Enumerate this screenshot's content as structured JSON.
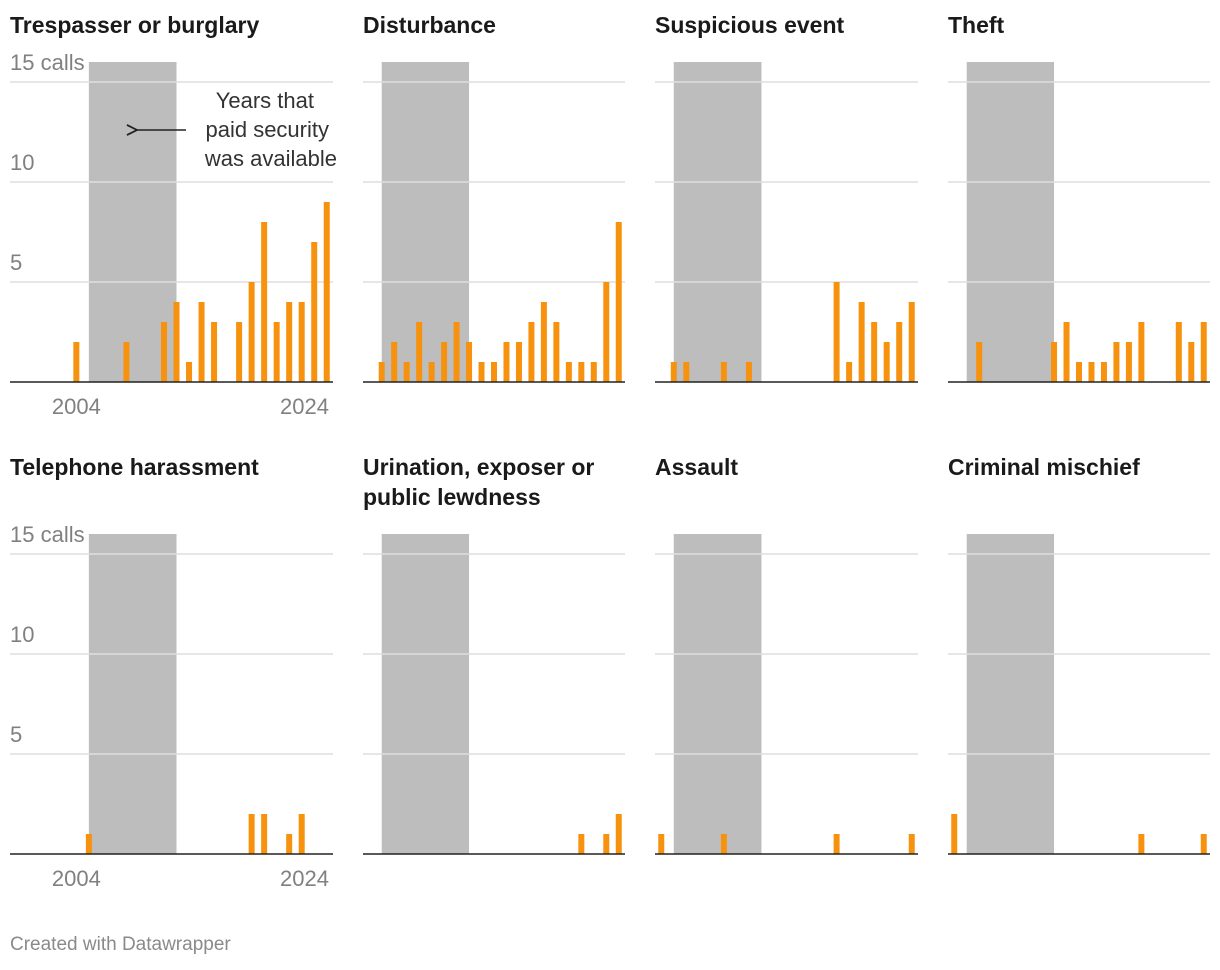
{
  "chart_data": [
    {
      "type": "bar",
      "title": "Trespasser or burglary",
      "color": "#f7920f",
      "x": [
        2004,
        2008,
        2011,
        2012,
        2013,
        2014,
        2015,
        2017,
        2018,
        2019,
        2020,
        2021,
        2022,
        2023,
        2024
      ],
      "values": [
        2,
        2,
        3,
        4,
        1,
        4,
        3,
        3,
        5,
        8,
        3,
        4,
        4,
        7,
        9
      ],
      "xlim": [
        1998.7,
        2024.5
      ],
      "xticks": [
        2004,
        2024
      ],
      "ylim": [
        0,
        16
      ],
      "yticks": [
        5,
        10,
        {
          "value": 15,
          "label": "15 calls"
        }
      ],
      "grid": true,
      "highlight_range": [
        2005,
        2012
      ],
      "highlight_color": "#bdbdbd",
      "annotation": [
        "Years that",
        "paid security",
        "was available"
      ]
    },
    {
      "type": "bar",
      "title": "Disturbance",
      "color": "#f7920f",
      "x": [
        2005,
        2006,
        2007,
        2008,
        2009,
        2010,
        2011,
        2012,
        2013,
        2014,
        2015,
        2016,
        2017,
        2018,
        2019,
        2020,
        2021,
        2022,
        2023,
        2024
      ],
      "values": [
        1,
        2,
        1,
        3,
        1,
        2,
        3,
        2,
        1,
        1,
        2,
        2,
        3,
        4,
        3,
        1,
        1,
        1,
        5,
        8
      ],
      "xlim": [
        2003.5,
        2024.5
      ],
      "ylim": [
        0,
        16
      ],
      "yticks": [
        5,
        10,
        15
      ],
      "tick_labels": false,
      "grid": true,
      "highlight_range": [
        2005,
        2012
      ],
      "highlight_color": "#bdbdbd"
    },
    {
      "type": "bar",
      "title": "Suspicious event",
      "color": "#f7920f",
      "x": [
        2005,
        2006,
        2009,
        2011,
        2018,
        2019,
        2020,
        2021,
        2022,
        2023,
        2024
      ],
      "values": [
        1,
        1,
        1,
        1,
        5,
        1,
        4,
        3,
        2,
        3,
        4
      ],
      "xlim": [
        2003.5,
        2024.5
      ],
      "ylim": [
        0,
        16
      ],
      "yticks": [
        5,
        10,
        15
      ],
      "tick_labels": false,
      "grid": true,
      "highlight_range": [
        2005,
        2012
      ],
      "highlight_color": "#bdbdbd"
    },
    {
      "type": "bar",
      "title": "Theft",
      "color": "#f7920f",
      "x": [
        2006,
        2012,
        2013,
        2014,
        2015,
        2016,
        2017,
        2018,
        2019,
        2022,
        2023,
        2024
      ],
      "values": [
        2,
        2,
        3,
        1,
        1,
        1,
        2,
        2,
        3,
        3,
        2,
        3
      ],
      "xlim": [
        2003.5,
        2024.5
      ],
      "ylim": [
        0,
        16
      ],
      "yticks": [
        5,
        10,
        15
      ],
      "tick_labels": false,
      "grid": true,
      "highlight_range": [
        2005,
        2012
      ],
      "highlight_color": "#bdbdbd"
    },
    {
      "type": "bar",
      "title": "Telephone harassment",
      "color": "#f7920f",
      "x": [
        2005,
        2018,
        2019,
        2021,
        2022
      ],
      "values": [
        1,
        2,
        2,
        1,
        2
      ],
      "xlim": [
        1998.7,
        2024.5
      ],
      "xticks": [
        2004,
        2024
      ],
      "ylim": [
        0,
        16
      ],
      "yticks": [
        5,
        10,
        {
          "value": 15,
          "label": "15 calls"
        }
      ],
      "grid": true,
      "highlight_range": [
        2005,
        2012
      ],
      "highlight_color": "#bdbdbd"
    },
    {
      "type": "bar",
      "title": "Urination, exposer or public lewdness",
      "color": "#f7920f",
      "x": [
        2021,
        2023,
        2024
      ],
      "values": [
        1,
        1,
        2
      ],
      "xlim": [
        2003.5,
        2024.5
      ],
      "ylim": [
        0,
        16
      ],
      "yticks": [
        5,
        10,
        15
      ],
      "tick_labels": false,
      "grid": true,
      "highlight_range": [
        2005,
        2012
      ],
      "highlight_color": "#bdbdbd"
    },
    {
      "type": "bar",
      "title": "Assault",
      "color": "#f7920f",
      "x": [
        2004,
        2009,
        2018,
        2024
      ],
      "values": [
        1,
        1,
        1,
        1
      ],
      "xlim": [
        2003.5,
        2024.5
      ],
      "ylim": [
        0,
        16
      ],
      "yticks": [
        5,
        10,
        15
      ],
      "tick_labels": false,
      "grid": true,
      "highlight_range": [
        2005,
        2012
      ],
      "highlight_color": "#bdbdbd"
    },
    {
      "type": "bar",
      "title": "Criminal mischief",
      "color": "#f7920f",
      "x": [
        2004,
        2019,
        2024
      ],
      "values": [
        2,
        1,
        1
      ],
      "xlim": [
        2003.5,
        2024.5
      ],
      "ylim": [
        0,
        16
      ],
      "yticks": [
        5,
        10,
        15
      ],
      "tick_labels": false,
      "grid": true,
      "highlight_range": [
        2005,
        2012
      ],
      "highlight_color": "#bdbdbd"
    }
  ],
  "footer": "Created with Datawrapper"
}
